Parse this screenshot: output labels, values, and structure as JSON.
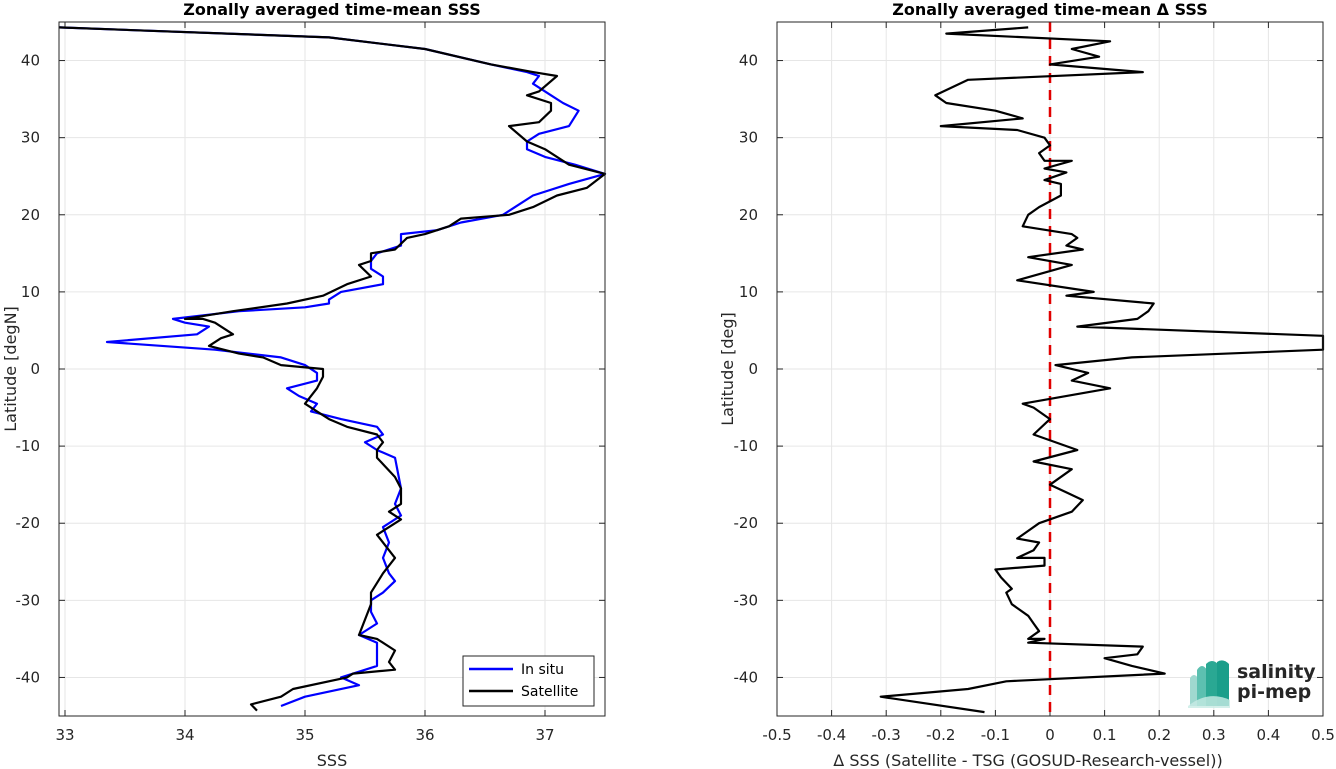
{
  "chart_data": [
    {
      "type": "line",
      "title": "Zonally averaged time-mean SSS",
      "xlabel": "SSS",
      "ylabel": "Latitude [degN]",
      "xlim": [
        32.95,
        37.5
      ],
      "ylim": [
        -45,
        45
      ],
      "xticks": [
        33,
        34,
        35,
        36,
        37
      ],
      "yticks": [
        -40,
        -30,
        -20,
        -10,
        0,
        10,
        20,
        30,
        40
      ],
      "grid": true,
      "legend": "bottom-right",
      "series": [
        {
          "name": "In situ",
          "color": "#0000ff",
          "x": [
            32.95,
            35.2,
            36.0,
            36.55,
            36.85,
            36.95,
            36.9,
            37.05,
            37.15,
            37.28,
            37.2,
            36.95,
            36.85,
            36.85,
            37.0,
            37.25,
            37.5,
            37.2,
            36.9,
            36.75,
            36.65,
            36.3,
            36.1,
            35.8,
            35.8,
            35.6,
            35.55,
            35.55,
            35.65,
            35.65,
            35.3,
            35.2,
            35.2,
            35.0,
            34.45,
            33.9,
            34.0,
            34.2,
            34.1,
            33.35,
            34.25,
            34.8,
            35.0,
            35.1,
            35.1,
            34.85,
            34.95,
            35.1,
            35.05,
            35.3,
            35.6,
            35.65,
            35.5,
            35.6,
            35.75,
            35.8,
            35.75,
            35.8,
            35.65,
            35.7,
            35.65,
            35.7,
            35.75,
            35.65,
            35.55,
            35.55,
            35.6,
            35.45,
            35.6,
            35.6,
            35.6,
            35.3,
            35.45,
            35.0,
            34.8
          ],
          "y": [
            44.3,
            43.0,
            41.5,
            39.5,
            38.5,
            38.0,
            37.0,
            35.5,
            34.5,
            33.5,
            31.5,
            30.5,
            29.5,
            28.5,
            27.5,
            26.5,
            25.3,
            24.0,
            22.5,
            21.0,
            20.0,
            19.0,
            18.0,
            17.5,
            16.0,
            15.0,
            14.0,
            13.0,
            12.0,
            11.0,
            10.0,
            9.0,
            8.5,
            8.0,
            7.5,
            6.5,
            6.0,
            5.5,
            4.5,
            3.5,
            2.5,
            1.5,
            0.5,
            -0.5,
            -1.5,
            -2.5,
            -3.5,
            -4.5,
            -5.5,
            -6.5,
            -7.5,
            -8.5,
            -9.5,
            -10.5,
            -11.5,
            -15.5,
            -17.5,
            -19.0,
            -20.5,
            -22.5,
            -24.5,
            -26.5,
            -27.5,
            -29.0,
            -30.0,
            -31.5,
            -33.0,
            -34.5,
            -35.5,
            -37.0,
            -38.5,
            -40.0,
            -41.0,
            -42.5,
            -43.7
          ]
        },
        {
          "name": "Satellite",
          "color": "#000000",
          "x": [
            32.95,
            35.2,
            36.0,
            36.55,
            36.9,
            37.1,
            36.95,
            36.85,
            37.05,
            37.05,
            36.95,
            36.7,
            36.85,
            37.0,
            37.2,
            37.5,
            37.35,
            37.1,
            36.9,
            36.7,
            36.3,
            36.2,
            36.0,
            35.85,
            35.75,
            35.55,
            35.55,
            35.45,
            35.55,
            35.35,
            35.15,
            34.85,
            34.4,
            34.0,
            34.15,
            34.25,
            34.4,
            34.3,
            34.2,
            34.45,
            34.65,
            34.8,
            35.15,
            35.15,
            35.15,
            35.1,
            35.0,
            35.05,
            35.1,
            35.2,
            35.35,
            35.6,
            35.65,
            35.6,
            35.6,
            35.75,
            35.8,
            35.8,
            35.7,
            35.8,
            35.6,
            35.75,
            35.65,
            35.55,
            35.55,
            35.45,
            35.6,
            35.75,
            35.7,
            35.75,
            35.4,
            35.35,
            34.9,
            34.8,
            34.55,
            34.6
          ],
          "y": [
            44.3,
            43.0,
            41.5,
            39.5,
            38.5,
            38.0,
            36.0,
            35.5,
            34.5,
            33.5,
            32.0,
            31.5,
            29.5,
            28.5,
            26.5,
            25.3,
            23.5,
            22.5,
            21.0,
            20.0,
            19.5,
            18.5,
            17.5,
            17.0,
            15.5,
            15.0,
            14.0,
            13.5,
            12.0,
            11.0,
            9.5,
            8.5,
            7.5,
            6.5,
            6.5,
            6.0,
            4.5,
            4.0,
            3.0,
            2.0,
            1.5,
            0.5,
            0.0,
            -0.5,
            -1.0,
            -2.5,
            -4.5,
            -5.0,
            -5.5,
            -6.5,
            -7.5,
            -8.5,
            -9.5,
            -10.5,
            -11.5,
            -14.0,
            -15.5,
            -17.5,
            -18.5,
            -19.5,
            -21.5,
            -24.5,
            -26.5,
            -29.0,
            -30.5,
            -34.5,
            -35.0,
            -36.5,
            -38.0,
            -39.0,
            -39.5,
            -40.0,
            -41.5,
            -42.5,
            -43.5,
            -44.3
          ]
        }
      ]
    },
    {
      "type": "line",
      "title": "Zonally averaged time-mean Δ SSS",
      "xlabel": "Δ SSS (Satellite - TSG (GOSUD-Research-vessel))",
      "ylabel": "Latitude [deg]",
      "xlim": [
        -0.5,
        0.5
      ],
      "ylim": [
        -45,
        45
      ],
      "xticks": [
        -0.5,
        -0.4,
        -0.3,
        -0.2,
        -0.1,
        0,
        0.1,
        0.2,
        0.3,
        0.4,
        0.5
      ],
      "yticks": [
        -40,
        -30,
        -20,
        -10,
        0,
        10,
        20,
        30,
        40
      ],
      "grid": true,
      "reference_line": {
        "x": 0,
        "color": "#e00000",
        "style": "dashed"
      },
      "series": [
        {
          "color": "#000000",
          "x": [
            -0.04,
            -0.19,
            0.11,
            0.04,
            0.09,
            0.0,
            0.17,
            -0.15,
            -0.21,
            -0.19,
            -0.1,
            -0.05,
            -0.2,
            -0.06,
            -0.01,
            0.0,
            -0.02,
            -0.01,
            0.04,
            -0.01,
            0.03,
            -0.01,
            0.02,
            0.02,
            -0.02,
            -0.04,
            -0.05,
            0.04,
            0.05,
            0.03,
            0.06,
            -0.04,
            0.04,
            -0.06,
            0.08,
            0.03,
            0.19,
            0.18,
            0.16,
            0.05,
            0.5,
            0.5,
            0.15,
            0.01,
            0.07,
            0.04,
            0.11,
            -0.05,
            -0.03,
            0.0,
            -0.03,
            0.05,
            -0.03,
            0.04,
            0.0,
            0.03,
            0.06,
            0.04,
            -0.02,
            -0.04,
            -0.06,
            -0.02,
            -0.03,
            -0.06,
            -0.01,
            -0.01,
            -0.1,
            -0.09,
            -0.07,
            -0.08,
            -0.07,
            -0.04,
            -0.03,
            -0.02,
            -0.04,
            -0.01,
            -0.04,
            0.17,
            0.16,
            0.1,
            0.15,
            0.21,
            -0.08,
            -0.15,
            -0.31,
            -0.12
          ],
          "y": [
            44.3,
            43.5,
            42.5,
            41.5,
            40.5,
            39.5,
            38.5,
            37.5,
            35.5,
            34.5,
            33.5,
            32.5,
            31.5,
            31.0,
            30.0,
            29.0,
            28.0,
            27.0,
            27.0,
            26.0,
            25.5,
            24.5,
            24.0,
            22.5,
            21.0,
            20.0,
            18.5,
            17.5,
            17.0,
            16.0,
            15.5,
            14.5,
            13.5,
            11.5,
            10.0,
            9.5,
            8.5,
            7.5,
            6.5,
            5.5,
            4.3,
            2.5,
            1.5,
            0.5,
            -0.5,
            -1.5,
            -2.5,
            -4.5,
            -5.0,
            -6.5,
            -8.5,
            -10.5,
            -12.0,
            -13.0,
            -15.0,
            -16.0,
            -17.0,
            -18.5,
            -20.0,
            -21.0,
            -22.0,
            -22.5,
            -23.5,
            -24.5,
            -24.5,
            -25.5,
            -26.0,
            -27.0,
            -28.5,
            -29.0,
            -30.5,
            -32.0,
            -33.0,
            -34.0,
            -35.0,
            -35.0,
            -35.5,
            -36.0,
            -37.0,
            -37.5,
            -38.5,
            -39.5,
            -40.5,
            -41.5,
            -42.5,
            -44.5
          ]
        }
      ]
    }
  ],
  "legend": {
    "items": [
      {
        "label": "In situ",
        "color": "#0000ff"
      },
      {
        "label": "Satellite",
        "color": "#000000"
      }
    ]
  },
  "branding": {
    "line1": "salinity",
    "line2": "pi-mep",
    "color": "#1a9e8a"
  }
}
